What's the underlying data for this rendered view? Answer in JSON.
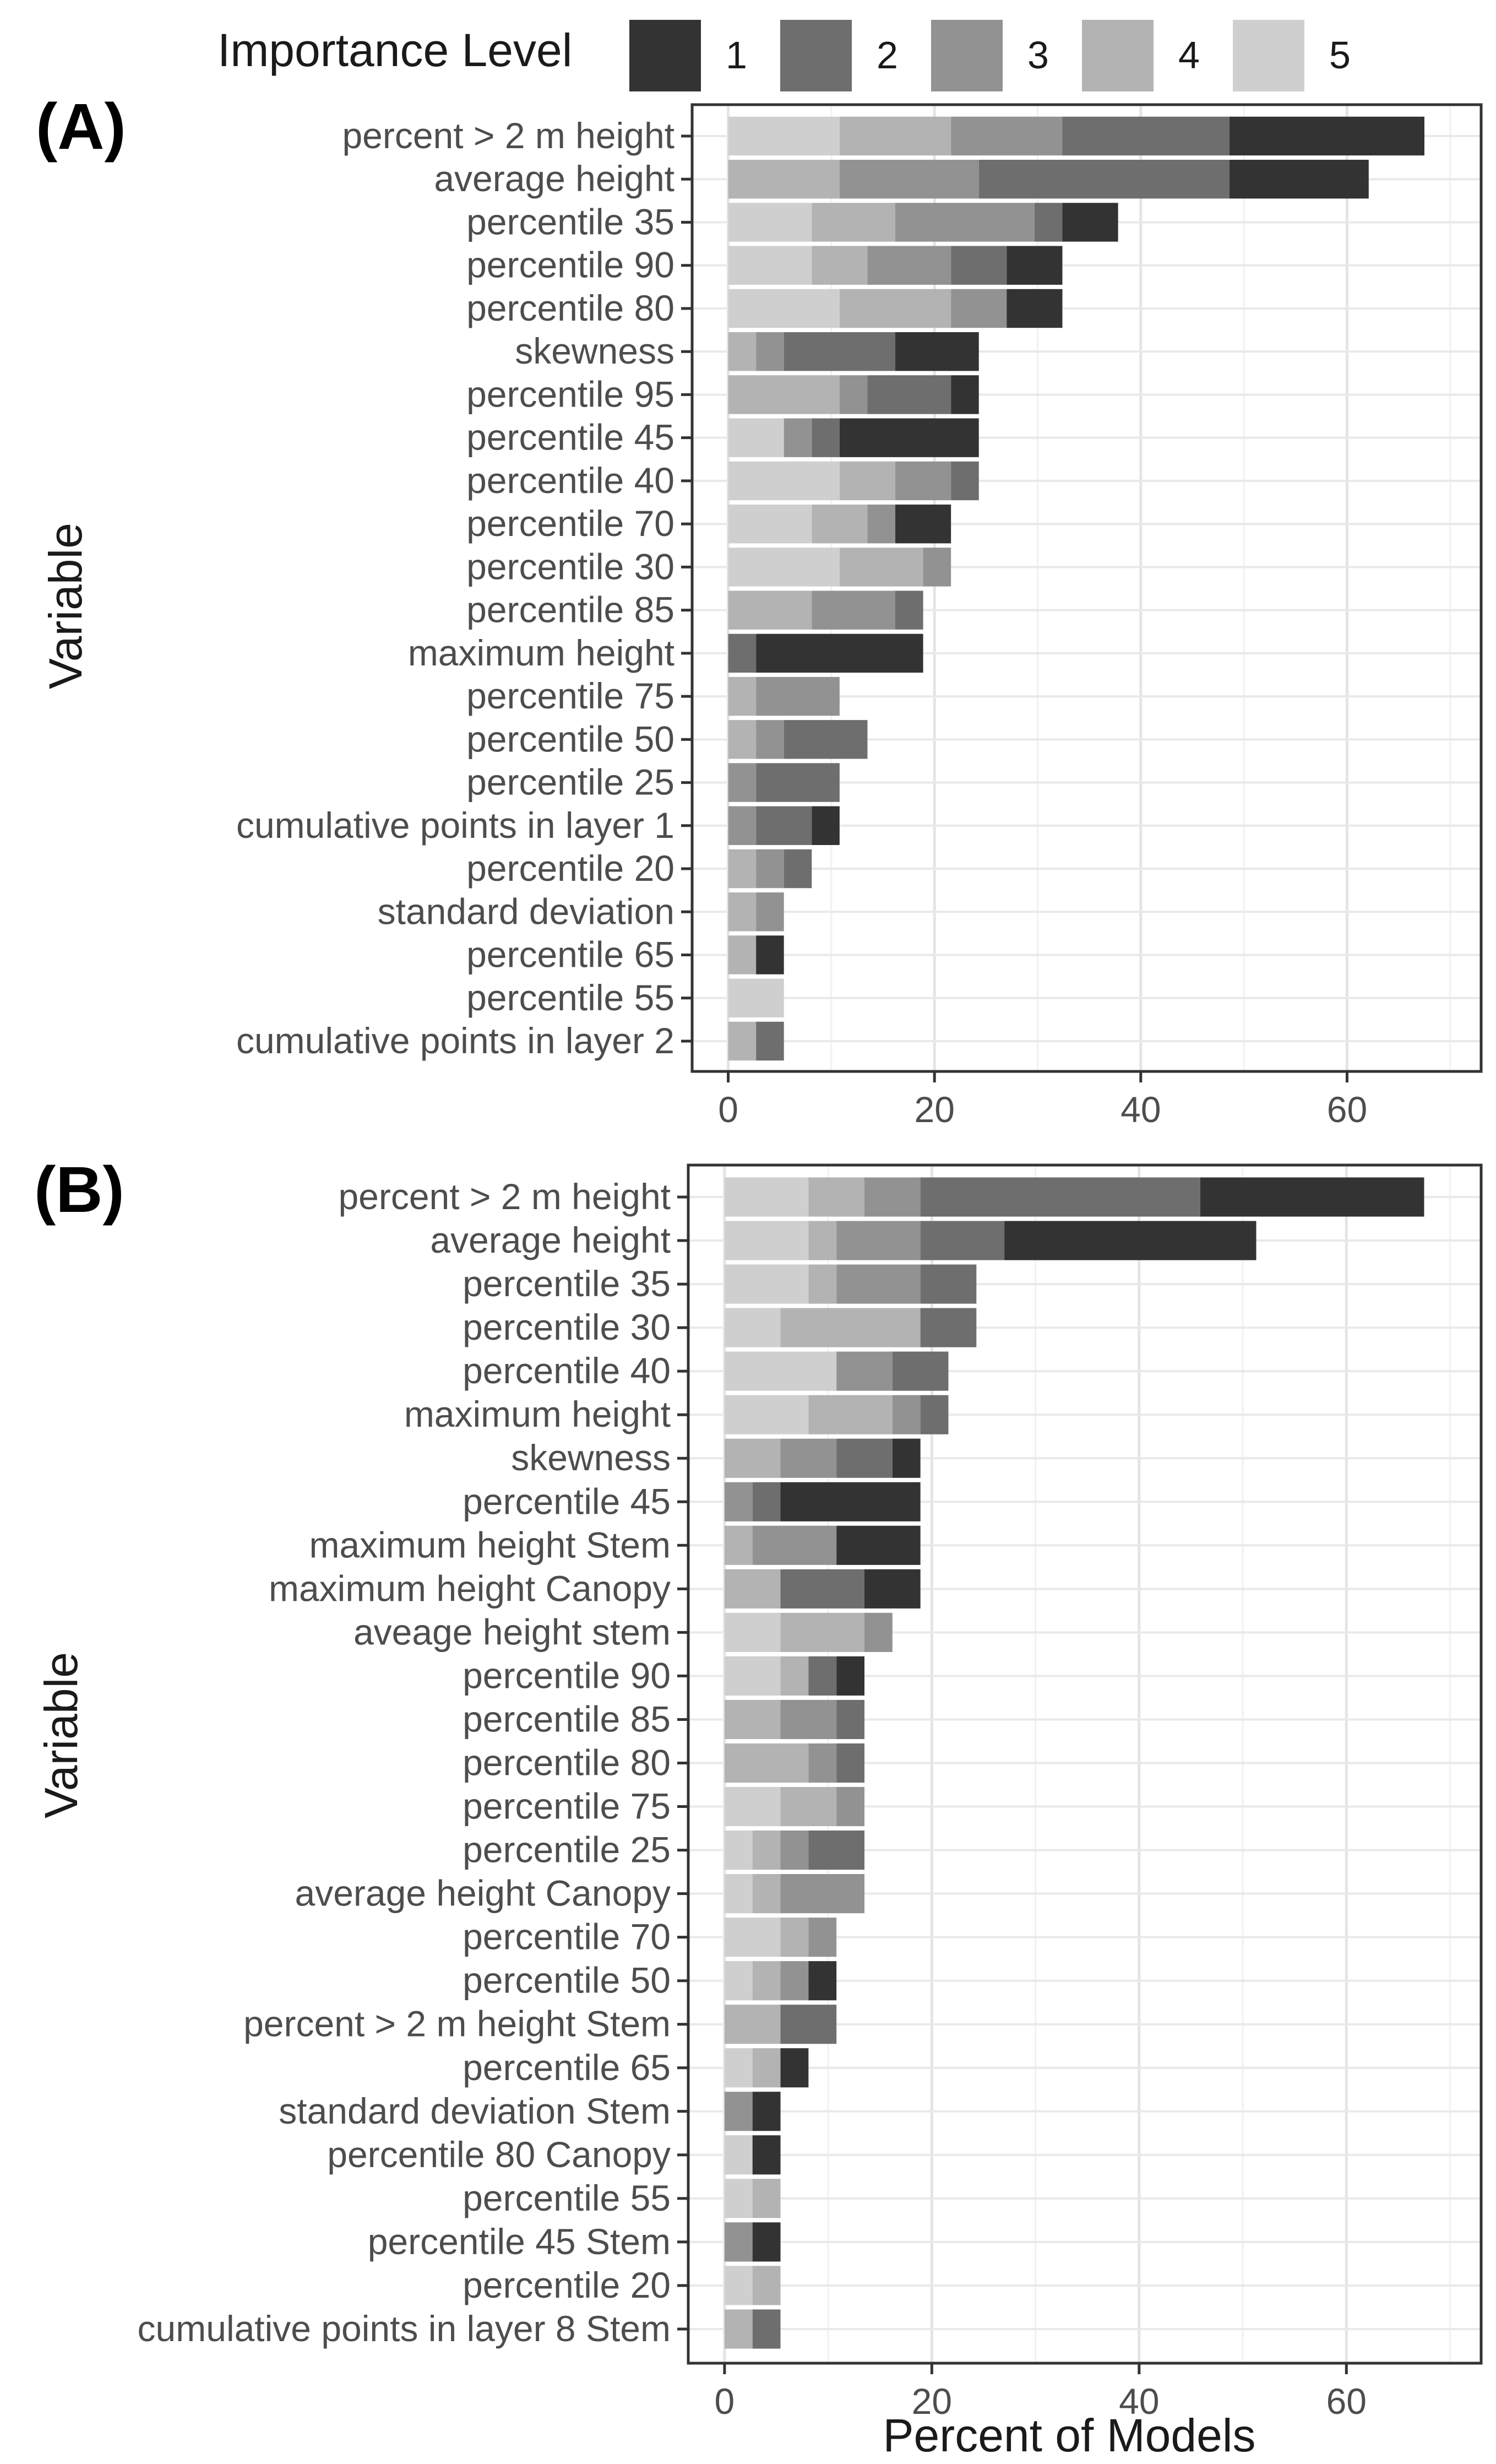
{
  "legend": {
    "title": "Importance Level",
    "levels": [
      {
        "label": "1",
        "color": "#333333"
      },
      {
        "label": "2",
        "color": "#6e6e6e"
      },
      {
        "label": "3",
        "color": "#929292"
      },
      {
        "label": "4",
        "color": "#b3b3b3"
      },
      {
        "label": "5",
        "color": "#cfcfcf"
      }
    ]
  },
  "x_axis_title": "Percent of Models",
  "chart_data": [
    {
      "type": "bar",
      "panel_label": "(A)",
      "orientation": "horizontal",
      "stacked": true,
      "ylabel": "Variable",
      "xlabel": "Percent of Models",
      "xlim": [
        -3.5,
        73
      ],
      "xticks": [
        0,
        20,
        40,
        60
      ],
      "series_order_left_to_right": [
        "5",
        "4",
        "3",
        "2",
        "1"
      ],
      "categories": [
        "percent > 2 m height",
        "average height",
        "percentile 35",
        "percentile 90",
        "percentile 80",
        "skewness",
        "percentile 95",
        "percentile 45",
        "percentile 40",
        "percentile 70",
        "percentile 30",
        "percentile 85",
        "maximum height",
        "percentile 75",
        "percentile 50",
        "percentile 25",
        "cumulative points in layer 1",
        "percentile 20",
        "standard deviation",
        "percentile 65",
        "percentile 55",
        "cumulative points in layer 2"
      ],
      "series": [
        {
          "name": "5",
          "values": [
            10.8,
            0,
            8.1,
            8.1,
            10.8,
            0,
            0,
            5.4,
            10.8,
            8.1,
            10.8,
            0,
            0,
            0,
            0,
            0,
            0,
            0,
            0,
            0,
            5.4,
            0
          ]
        },
        {
          "name": "4",
          "values": [
            10.8,
            10.8,
            8.1,
            5.4,
            10.8,
            2.7,
            10.8,
            0,
            5.4,
            5.4,
            8.1,
            8.1,
            0,
            2.7,
            2.7,
            0,
            0,
            2.7,
            2.7,
            2.7,
            0,
            2.7
          ]
        },
        {
          "name": "3",
          "values": [
            10.8,
            13.5,
            13.5,
            8.1,
            5.4,
            2.7,
            2.7,
            2.7,
            5.4,
            2.7,
            2.7,
            8.1,
            0,
            8.1,
            2.7,
            2.7,
            2.7,
            2.7,
            2.7,
            0,
            0,
            0
          ]
        },
        {
          "name": "2",
          "values": [
            16.2,
            24.3,
            2.7,
            5.4,
            0,
            10.8,
            8.1,
            2.7,
            2.7,
            0,
            0,
            2.7,
            2.7,
            0,
            8.1,
            8.1,
            5.4,
            2.7,
            0,
            0,
            0,
            2.7
          ]
        },
        {
          "name": "1",
          "values": [
            18.9,
            13.5,
            5.4,
            5.4,
            5.4,
            8.1,
            2.7,
            13.5,
            0,
            5.4,
            0,
            0,
            16.2,
            0,
            0,
            0,
            2.7,
            0,
            0,
            2.7,
            0,
            0
          ]
        }
      ]
    },
    {
      "type": "bar",
      "panel_label": "(B)",
      "orientation": "horizontal",
      "stacked": true,
      "ylabel": "Variable",
      "xlabel": "Percent of Models",
      "xlim": [
        -3.5,
        73
      ],
      "xticks": [
        0,
        20,
        40,
        60
      ],
      "series_order_left_to_right": [
        "5",
        "4",
        "3",
        "2",
        "1"
      ],
      "categories": [
        "percent > 2 m height",
        "average height",
        "percentile 35",
        "percentile 30",
        "percentile 40",
        "maximum height",
        "skewness",
        "percentile 45",
        "maximum height Stem",
        "maximum height Canopy",
        "aveage height stem",
        "percentile 90",
        "percentile 85",
        "percentile 80",
        "percentile 75",
        "percentile 25",
        "average height Canopy",
        "percentile 70",
        "percentile 50",
        "percent > 2 m height Stem",
        "percentile 65",
        "standard deviation Stem",
        "percentile 80 Canopy",
        "percentile 55",
        "percentile 45 Stem",
        "percentile 20",
        "cumulative points in layer 8 Stem"
      ],
      "series": [
        {
          "name": "5",
          "values": [
            8.1,
            8.1,
            8.1,
            5.4,
            10.8,
            8.1,
            0,
            0,
            0,
            0,
            5.4,
            5.4,
            0,
            0,
            5.4,
            2.7,
            2.7,
            5.4,
            2.7,
            0,
            2.7,
            0,
            2.7,
            2.7,
            0,
            2.7,
            0
          ]
        },
        {
          "name": "4",
          "values": [
            5.4,
            2.7,
            2.7,
            13.5,
            0,
            8.1,
            5.4,
            0,
            2.7,
            5.4,
            8.1,
            2.7,
            5.4,
            8.1,
            5.4,
            2.7,
            2.7,
            2.7,
            2.7,
            5.4,
            2.7,
            0,
            0,
            2.7,
            0,
            2.7,
            2.7
          ]
        },
        {
          "name": "3",
          "values": [
            5.4,
            8.1,
            8.1,
            0,
            5.4,
            2.7,
            5.4,
            2.7,
            8.1,
            0,
            2.7,
            0,
            5.4,
            2.7,
            2.7,
            2.7,
            8.1,
            2.7,
            2.7,
            0,
            0,
            2.7,
            0,
            0,
            2.7,
            0,
            0
          ]
        },
        {
          "name": "2",
          "values": [
            27.0,
            8.1,
            5.4,
            5.4,
            5.4,
            2.7,
            5.4,
            2.7,
            0,
            8.1,
            0,
            2.7,
            2.7,
            2.7,
            0,
            5.4,
            0,
            0,
            0,
            5.4,
            0,
            0,
            0,
            0,
            0,
            0,
            2.7
          ]
        },
        {
          "name": "1",
          "values": [
            21.6,
            24.3,
            0,
            0,
            0,
            0,
            2.7,
            13.5,
            8.1,
            5.4,
            0,
            2.7,
            0,
            0,
            0,
            0,
            0,
            0,
            2.7,
            0,
            2.7,
            2.7,
            2.7,
            0,
            2.7,
            0,
            0
          ]
        }
      ]
    }
  ]
}
